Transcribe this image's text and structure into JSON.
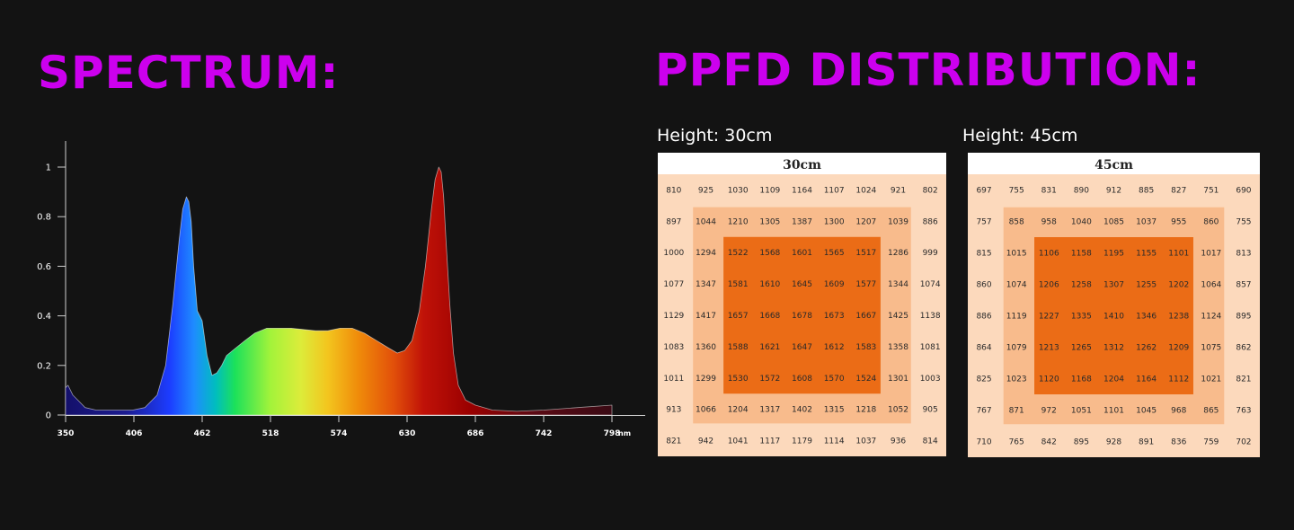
{
  "spectrum": {
    "title": "SPECTRUM:"
  },
  "ppfd": {
    "title": "PPFD DISTRIBUTION:"
  },
  "chart_data": [
    {
      "type": "area",
      "xlabel": "",
      "ylabel": "",
      "x_unit": "nm",
      "xlim": [
        350,
        798
      ],
      "ylim": [
        0,
        1
      ],
      "x_ticks": [
        350,
        406,
        462,
        518,
        574,
        630,
        686,
        742,
        798
      ],
      "x_tick_labels": [
        "350",
        "406",
        "462",
        "518",
        "574",
        "630",
        "686",
        "742",
        "798"
      ],
      "y_ticks": [
        0,
        0.2,
        0.4,
        0.6,
        0.8,
        1
      ],
      "y_tick_labels": [
        "0",
        "0.2",
        "0.4",
        "0.6",
        "0.8",
        "1"
      ],
      "grid": false,
      "fill": "spectral wavelength colors (blue → green → yellow → orange → red)",
      "x": [
        350,
        352,
        356,
        360,
        366,
        375,
        385,
        395,
        405,
        415,
        425,
        432,
        438,
        443,
        446,
        449,
        451,
        453,
        455,
        458,
        462,
        466,
        470,
        474,
        478,
        482,
        487,
        492,
        497,
        505,
        515,
        525,
        535,
        545,
        555,
        565,
        575,
        585,
        595,
        605,
        615,
        622,
        628,
        634,
        640,
        645,
        650,
        653,
        656,
        658,
        660,
        662,
        665,
        668,
        672,
        678,
        686,
        700,
        720,
        742,
        770,
        798
      ],
      "y": [
        0.11,
        0.12,
        0.08,
        0.06,
        0.03,
        0.02,
        0.02,
        0.02,
        0.02,
        0.03,
        0.08,
        0.2,
        0.45,
        0.7,
        0.83,
        0.88,
        0.86,
        0.78,
        0.6,
        0.42,
        0.38,
        0.24,
        0.16,
        0.17,
        0.2,
        0.24,
        0.26,
        0.28,
        0.3,
        0.33,
        0.35,
        0.35,
        0.35,
        0.345,
        0.34,
        0.34,
        0.35,
        0.35,
        0.33,
        0.3,
        0.27,
        0.25,
        0.26,
        0.3,
        0.42,
        0.6,
        0.83,
        0.95,
        1.0,
        0.98,
        0.88,
        0.7,
        0.45,
        0.25,
        0.12,
        0.06,
        0.04,
        0.02,
        0.015,
        0.02,
        0.03,
        0.04
      ]
    },
    {
      "type": "heatmap",
      "title": "30cm",
      "label": "Height: 30cm",
      "rows": [
        [
          810,
          925,
          1030,
          1109,
          1164,
          1107,
          1024,
          921,
          802
        ],
        [
          897,
          1044,
          1210,
          1305,
          1387,
          1300,
          1207,
          1039,
          886
        ],
        [
          1000,
          1294,
          1522,
          1568,
          1601,
          1565,
          1517,
          1286,
          999
        ],
        [
          1077,
          1347,
          1581,
          1610,
          1645,
          1609,
          1577,
          1344,
          1074
        ],
        [
          1129,
          1417,
          1657,
          1668,
          1678,
          1673,
          1667,
          1425,
          1138
        ],
        [
          1083,
          1360,
          1588,
          1621,
          1647,
          1612,
          1583,
          1358,
          1081
        ],
        [
          1011,
          1299,
          1530,
          1572,
          1608,
          1570,
          1524,
          1301,
          1003
        ],
        [
          913,
          1066,
          1204,
          1317,
          1402,
          1315,
          1218,
          1052,
          905
        ],
        [
          821,
          942,
          1041,
          1117,
          1179,
          1114,
          1037,
          936,
          814
        ]
      ],
      "colors": {
        "outer": "#fcd9bc",
        "middle": "#f8bb8c",
        "inner": "#eb6c16"
      }
    },
    {
      "type": "heatmap",
      "title": "45cm",
      "label": "Height: 45cm",
      "rows": [
        [
          697,
          755,
          831,
          890,
          912,
          885,
          827,
          751,
          690
        ],
        [
          757,
          858,
          958,
          1040,
          1085,
          1037,
          955,
          860,
          755
        ],
        [
          815,
          1015,
          1106,
          1158,
          1195,
          1155,
          1101,
          1017,
          813
        ],
        [
          860,
          1074,
          1206,
          1258,
          1307,
          1255,
          1202,
          1064,
          857
        ],
        [
          886,
          1119,
          1227,
          1335,
          1410,
          1346,
          1238,
          1124,
          895
        ],
        [
          864,
          1079,
          1213,
          1265,
          1312,
          1262,
          1209,
          1075,
          862
        ],
        [
          825,
          1023,
          1120,
          1168,
          1204,
          1164,
          1112,
          1021,
          821
        ],
        [
          767,
          871,
          972,
          1051,
          1101,
          1045,
          968,
          865,
          763
        ],
        [
          710,
          765,
          842,
          895,
          928,
          891,
          836,
          759,
          702
        ]
      ],
      "colors": {
        "outer": "#fcd9bc",
        "middle": "#f8bb8c",
        "inner": "#eb6c16"
      }
    }
  ]
}
